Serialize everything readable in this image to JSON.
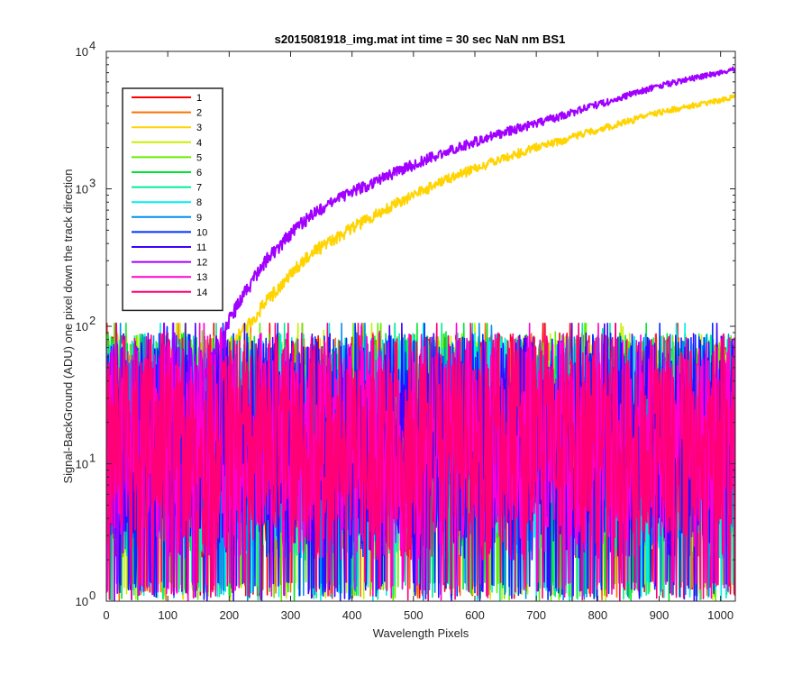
{
  "chart_data": {
    "type": "line",
    "title": "s2015081918_img.mat int time = 30 sec  NaN nm BS1",
    "xlabel": "Wavelength Pixels",
    "ylabel": "Signal-BackGround (ADU) one pixel down the track direction",
    "xlim": [
      0,
      1024
    ],
    "ylim": [
      1,
      10000
    ],
    "yscale": "log",
    "x_ticks": [
      "0",
      "100",
      "200",
      "300",
      "400",
      "500",
      "600",
      "700",
      "800",
      "900",
      "1000"
    ],
    "x_tick_values": [
      0,
      100,
      200,
      300,
      400,
      500,
      600,
      700,
      800,
      900,
      1000
    ],
    "y_ticks": [
      {
        "value": 1,
        "base": "10",
        "exp": "0"
      },
      {
        "value": 10,
        "base": "10",
        "exp": "1"
      },
      {
        "value": 100,
        "base": "10",
        "exp": "2"
      },
      {
        "value": 1000,
        "base": "10",
        "exp": "3"
      },
      {
        "value": 10000,
        "base": "10",
        "exp": "4"
      }
    ],
    "grid": false,
    "legend_position": "top-left",
    "noise_range": [
      1,
      100
    ],
    "series": [
      {
        "name": "1",
        "color": "#ff0000",
        "type": "noise"
      },
      {
        "name": "2",
        "color": "#ff7000",
        "type": "noise"
      },
      {
        "name": "3",
        "color": "#ffd400",
        "type": "signal",
        "points": [
          [
            160,
            30
          ],
          [
            170,
            50
          ],
          [
            180,
            62
          ],
          [
            190,
            66
          ],
          [
            200,
            72
          ],
          [
            220,
            90
          ],
          [
            240,
            115
          ],
          [
            260,
            150
          ],
          [
            280,
            190
          ],
          [
            300,
            240
          ],
          [
            320,
            300
          ],
          [
            340,
            360
          ],
          [
            370,
            420
          ],
          [
            400,
            520
          ],
          [
            450,
            700
          ],
          [
            500,
            900
          ],
          [
            550,
            1150
          ],
          [
            600,
            1400
          ],
          [
            650,
            1700
          ],
          [
            700,
            2000
          ],
          [
            750,
            2300
          ],
          [
            800,
            2700
          ],
          [
            850,
            3100
          ],
          [
            900,
            3600
          ],
          [
            950,
            4000
          ],
          [
            1000,
            4400
          ],
          [
            1024,
            4700
          ]
        ]
      },
      {
        "name": "4",
        "color": "#c8f000",
        "type": "noise"
      },
      {
        "name": "5",
        "color": "#66ee00",
        "type": "noise"
      },
      {
        "name": "6",
        "color": "#00e630",
        "type": "noise"
      },
      {
        "name": "7",
        "color": "#00ee99",
        "type": "noise"
      },
      {
        "name": "8",
        "color": "#00eeee",
        "type": "noise"
      },
      {
        "name": "9",
        "color": "#0090f0",
        "type": "noise"
      },
      {
        "name": "10",
        "color": "#0030ff",
        "type": "noise"
      },
      {
        "name": "11",
        "color": "#4000ff",
        "type": "noise"
      },
      {
        "name": "12",
        "color": "#a000ff",
        "type": "signal",
        "points": [
          [
            150,
            30
          ],
          [
            165,
            50
          ],
          [
            180,
            70
          ],
          [
            190,
            85
          ],
          [
            200,
            110
          ],
          [
            220,
            160
          ],
          [
            240,
            220
          ],
          [
            260,
            300
          ],
          [
            280,
            380
          ],
          [
            300,
            470
          ],
          [
            320,
            570
          ],
          [
            340,
            680
          ],
          [
            370,
            800
          ],
          [
            400,
            950
          ],
          [
            450,
            1200
          ],
          [
            500,
            1500
          ],
          [
            550,
            1850
          ],
          [
            600,
            2200
          ],
          [
            650,
            2600
          ],
          [
            700,
            3000
          ],
          [
            750,
            3500
          ],
          [
            800,
            4100
          ],
          [
            850,
            4800
          ],
          [
            900,
            5600
          ],
          [
            950,
            6300
          ],
          [
            1000,
            7000
          ],
          [
            1024,
            7500
          ]
        ]
      },
      {
        "name": "13",
        "color": "#ff00d0",
        "type": "noise"
      },
      {
        "name": "14",
        "color": "#ff0077",
        "type": "noise"
      }
    ]
  }
}
